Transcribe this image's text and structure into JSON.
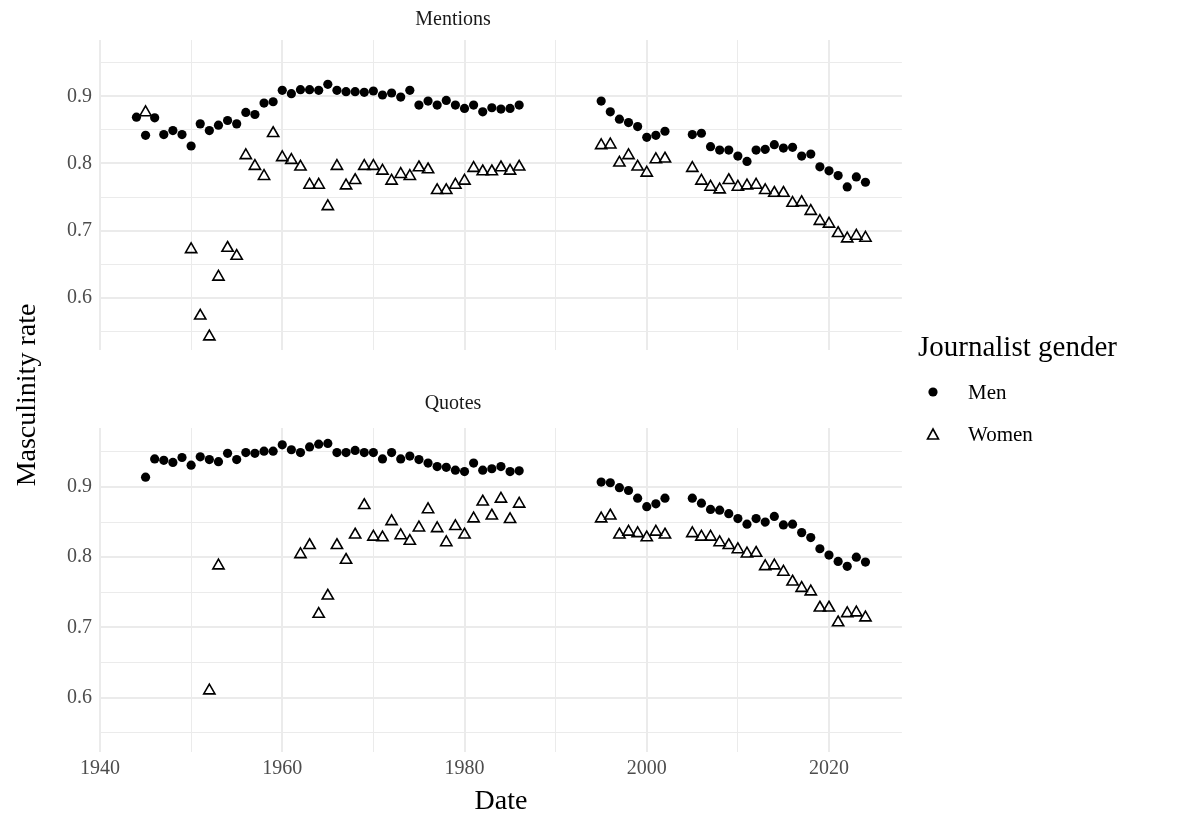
{
  "chart_data": [
    {
      "type": "scatter",
      "title": "Mentions",
      "ylabel": "Masculinity rate",
      "legend_title": "Journalist gender",
      "legend": "right",
      "grid": true,
      "tick_labels": "y",
      "x": [
        1944,
        1945,
        1946,
        1947,
        1948,
        1949,
        1950,
        1951,
        1952,
        1953,
        1954,
        1955,
        1956,
        1957,
        1958,
        1959,
        1960,
        1961,
        1962,
        1963,
        1964,
        1965,
        1966,
        1967,
        1968,
        1969,
        1970,
        1971,
        1972,
        1973,
        1974,
        1975,
        1976,
        1977,
        1978,
        1979,
        1980,
        1981,
        1982,
        1983,
        1984,
        1985,
        1986,
        1987,
        1988,
        1989,
        1990,
        1991,
        1992,
        1993,
        1994,
        1995,
        1996,
        1997,
        1998,
        1999,
        2000,
        2001,
        2002,
        2003,
        2004,
        2005,
        2006,
        2007,
        2008,
        2009,
        2010,
        2011,
        2012,
        2013,
        2014,
        2015,
        2016,
        2017,
        2018,
        2019,
        2020,
        2021,
        2022,
        2023,
        2024
      ],
      "xlim": [
        1940,
        2028
      ],
      "xticks": [
        1940,
        {
          "value": 1950,
          "label": null
        },
        1960,
        {
          "value": 1970,
          "label": null
        },
        1980,
        {
          "value": 1990,
          "label": null
        },
        2000,
        {
          "value": 2010,
          "label": null
        },
        2020
      ],
      "ylim": [
        0.522,
        0.984
      ],
      "yticks": [
        {
          "value": 0.55,
          "label": null
        },
        0.6,
        {
          "value": 0.65,
          "label": null
        },
        0.7,
        {
          "value": 0.75,
          "label": null
        },
        0.8,
        {
          "value": 0.85,
          "label": null
        },
        0.9,
        {
          "value": 0.95,
          "label": null
        }
      ],
      "series": [
        {
          "name": "Men",
          "color": "#000000",
          "marker": "circle",
          "values": [
            0.869,
            0.842,
            0.868,
            0.843,
            0.849,
            0.843,
            0.826,
            0.859,
            0.849,
            0.857,
            0.864,
            0.859,
            0.876,
            0.873,
            0.89,
            0.892,
            0.909,
            0.904,
            0.91,
            0.91,
            0.909,
            0.918,
            0.909,
            0.907,
            0.907,
            0.906,
            0.908,
            0.902,
            0.905,
            0.899,
            0.909,
            0.887,
            0.893,
            0.887,
            0.894,
            0.887,
            0.882,
            0.887,
            0.877,
            0.883,
            0.881,
            0.882,
            0.887,
            null,
            null,
            null,
            null,
            null,
            null,
            null,
            null,
            0.893,
            0.877,
            0.866,
            0.861,
            0.855,
            0.839,
            0.842,
            0.848,
            null,
            null,
            0.843,
            0.845,
            0.825,
            0.82,
            0.82,
            0.811,
            0.803,
            0.82,
            0.821,
            0.828,
            0.823,
            0.824,
            0.811,
            0.814,
            0.795,
            0.789,
            0.782,
            0.765,
            0.78,
            0.772
          ]
        },
        {
          "name": "Women",
          "color": "#000000",
          "marker": "triangle",
          "values": [
            null,
            0.876,
            null,
            null,
            null,
            null,
            0.672,
            0.573,
            0.542,
            0.631,
            0.674,
            0.662,
            0.812,
            0.796,
            0.781,
            0.845,
            0.809,
            0.805,
            0.795,
            0.768,
            0.768,
            0.736,
            0.796,
            0.767,
            0.775,
            0.796,
            0.796,
            0.789,
            0.774,
            0.784,
            0.781,
            0.794,
            0.791,
            0.76,
            0.76,
            0.768,
            0.774,
            0.793,
            0.788,
            0.788,
            0.794,
            0.789,
            0.795,
            null,
            null,
            null,
            null,
            null,
            null,
            null,
            null,
            0.827,
            0.828,
            0.801,
            0.812,
            0.795,
            0.786,
            0.806,
            0.807,
            null,
            null,
            0.793,
            0.774,
            0.765,
            0.761,
            0.775,
            0.765,
            0.767,
            0.768,
            0.76,
            0.756,
            0.756,
            0.741,
            0.742,
            0.729,
            0.714,
            0.71,
            0.696,
            0.688,
            0.692,
            0.689
          ]
        }
      ]
    },
    {
      "type": "scatter",
      "title": "Quotes",
      "xlabel": "Date",
      "grid": true,
      "x": [
        1945,
        1946,
        1947,
        1948,
        1949,
        1950,
        1951,
        1952,
        1953,
        1954,
        1955,
        1956,
        1957,
        1958,
        1959,
        1960,
        1961,
        1962,
        1963,
        1964,
        1965,
        1966,
        1967,
        1968,
        1969,
        1970,
        1971,
        1972,
        1973,
        1974,
        1975,
        1976,
        1977,
        1978,
        1979,
        1980,
        1981,
        1982,
        1983,
        1984,
        1985,
        1986,
        1987,
        1988,
        1989,
        1990,
        1991,
        1992,
        1993,
        1994,
        1995,
        1996,
        1997,
        1998,
        1999,
        2000,
        2001,
        2002,
        2003,
        2004,
        2005,
        2006,
        2007,
        2008,
        2009,
        2010,
        2011,
        2012,
        2013,
        2014,
        2015,
        2016,
        2017,
        2018,
        2019,
        2020,
        2021,
        2022,
        2023,
        2024
      ],
      "xlim": [
        1940,
        2028
      ],
      "xticks": [
        1940,
        {
          "value": 1950,
          "label": null
        },
        1960,
        {
          "value": 1970,
          "label": null
        },
        1980,
        {
          "value": 1990,
          "label": null
        },
        2000,
        {
          "value": 2010,
          "label": null
        },
        2020
      ],
      "ylim": [
        0.522,
        0.984
      ],
      "yticks": [
        {
          "value": 0.55,
          "label": null
        },
        0.6,
        {
          "value": 0.65,
          "label": null
        },
        0.7,
        {
          "value": 0.75,
          "label": null
        },
        0.8,
        {
          "value": 0.85,
          "label": null
        },
        0.9,
        {
          "value": 0.95,
          "label": null
        }
      ],
      "series": [
        {
          "color": "#000000",
          "marker": "circle",
          "values": [
            0.914,
            0.94,
            0.938,
            0.935,
            0.942,
            0.931,
            0.943,
            0.939,
            0.936,
            0.948,
            0.939,
            0.949,
            0.948,
            0.951,
            0.951,
            0.96,
            0.953,
            0.949,
            0.957,
            0.961,
            0.962,
            0.949,
            0.949,
            0.952,
            0.949,
            0.949,
            0.94,
            0.949,
            0.94,
            0.944,
            0.939,
            0.934,
            0.929,
            0.928,
            0.924,
            0.922,
            0.934,
            0.924,
            0.926,
            0.929,
            0.922,
            0.923,
            null,
            null,
            null,
            null,
            null,
            null,
            null,
            null,
            0.907,
            0.906,
            0.899,
            0.895,
            0.884,
            0.872,
            0.876,
            0.884,
            null,
            null,
            0.884,
            0.877,
            0.868,
            0.867,
            0.862,
            0.855,
            0.847,
            0.855,
            0.85,
            0.858,
            0.846,
            0.847,
            0.835,
            0.828,
            0.812,
            0.803,
            0.794,
            0.787,
            0.8,
            0.793
          ]
        },
        {
          "color": "#000000",
          "marker": "triangle",
          "values": [
            null,
            null,
            null,
            null,
            null,
            null,
            null,
            0.61,
            0.788,
            null,
            null,
            null,
            null,
            null,
            null,
            null,
            null,
            0.804,
            0.817,
            0.719,
            0.745,
            0.817,
            0.796,
            0.832,
            0.874,
            0.829,
            0.828,
            0.851,
            0.831,
            0.823,
            0.842,
            0.868,
            0.841,
            0.821,
            0.844,
            0.832,
            0.855,
            0.879,
            0.859,
            0.883,
            0.854,
            0.876,
            null,
            null,
            null,
            null,
            null,
            null,
            null,
            null,
            0.855,
            0.859,
            0.832,
            0.836,
            0.834,
            0.828,
            0.836,
            0.832,
            null,
            null,
            0.834,
            0.829,
            0.829,
            0.821,
            0.817,
            0.811,
            0.805,
            0.806,
            0.787,
            0.788,
            0.779,
            0.765,
            0.756,
            0.751,
            0.728,
            0.728,
            0.707,
            0.72,
            0.721,
            0.714
          ]
        }
      ]
    }
  ]
}
